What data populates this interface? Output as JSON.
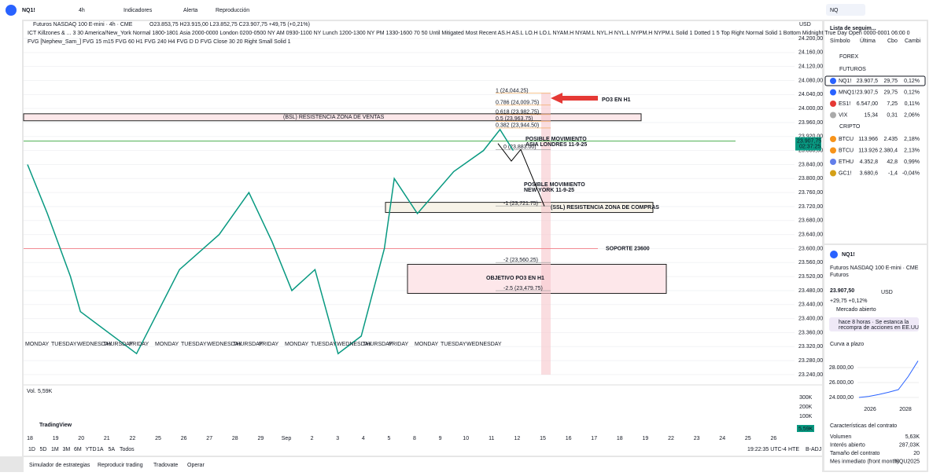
{
  "toolbar": {
    "symbol": "NQ1!",
    "interval": "4h",
    "indicators": "Indicadores",
    "alert": "Alerta",
    "replay": "Reproducción",
    "search": "NQ"
  },
  "chart": {
    "title": "Futuros NASDAQ 100 E-mini · 4h · CME",
    "ohlc": "O23.853,75 H23.915,00 L23.852,75 C23.907,75 +49,75 (+0,21%)",
    "indicator1": "ICT Killzones & ...  3 30 America/New_York Normal 1800-1801 Asia 2000-0000 London 0200-0500 NY AM 0930-1100 NY Lunch 1200-1300 NY PM 1330-1600 70 50 Until Mitigated Most Recent AS.H AS.L LO.H LO.L NYAM.H NYAM.L NYL.H NYL.L NYPM.H NYPM.L Solid 1 Dotted 1 5 Top Right Normal Solid 1 Bottom Midnight True Day Open 0000-0001 06:00 0",
    "indicator2": "FVG [Nephew_Sam_] FVG 15 m15 FVG 60 H1 FVG 240 H4 FVG D D FVG Close 30 20 Right Small Solid 1",
    "currency": "USD",
    "price_label": "23.907,75",
    "countdown": "02:37:25",
    "price_ticks": [
      {
        "value": 24200,
        "label": "24.200,00"
      },
      {
        "value": 24160,
        "label": "24.160,00"
      },
      {
        "value": 24120,
        "label": "24.120,00"
      },
      {
        "value": 24080,
        "label": "24.080,00"
      },
      {
        "value": 24040,
        "label": "24.040,00"
      },
      {
        "value": 24000,
        "label": "24.000,00"
      },
      {
        "value": 23960,
        "label": "23.960,00"
      },
      {
        "value": 23920,
        "label": "23.920,00"
      },
      {
        "value": 23880,
        "label": "23.880,00"
      },
      {
        "value": 23840,
        "label": "23.840,00"
      },
      {
        "value": 23800,
        "label": "23.800,00"
      },
      {
        "value": 23760,
        "label": "23.760,00"
      },
      {
        "value": 23720,
        "label": "23.720,00"
      },
      {
        "value": 23680,
        "label": "23.680,00"
      },
      {
        "value": 23640,
        "label": "23.640,00"
      },
      {
        "value": 23600,
        "label": "23.600,00"
      },
      {
        "value": 23560,
        "label": "23.560,00"
      },
      {
        "value": 23520,
        "label": "23.520,00"
      },
      {
        "value": 23480,
        "label": "23.480,00"
      },
      {
        "value": 23440,
        "label": "23.440,00"
      },
      {
        "value": 23400,
        "label": "23.400,00"
      },
      {
        "value": 23360,
        "label": "23.360,00"
      },
      {
        "value": 23320,
        "label": "23.320,00"
      },
      {
        "value": 23280,
        "label": "23.280,00"
      },
      {
        "value": 23240,
        "label": "23.240,00"
      }
    ],
    "price_path": {
      "x": [
        0,
        6,
        13,
        16,
        33,
        46,
        58,
        67,
        74,
        80,
        87,
        94,
        101,
        108,
        111,
        118,
        129,
        138,
        143,
        147
      ],
      "values": [
        23840,
        23700,
        23520,
        23420,
        23300,
        23540,
        23640,
        23760,
        23620,
        23480,
        23540,
        23300,
        23350,
        23600,
        23800,
        23700,
        23820,
        23880,
        23940,
        23880
      ]
    },
    "fib": [
      {
        "value": 24044.25,
        "label": "1 (24,044.25)"
      },
      {
        "value": 24009.75,
        "label": "0.786 (24,009.75)"
      },
      {
        "value": 23982.75,
        "label": "0.618 (23,982.75)"
      },
      {
        "value": 23963.75,
        "label": "0.5 (23,963.75)"
      },
      {
        "value": 23944.5,
        "label": "0.382 (23,944.50)"
      },
      {
        "value": 23883,
        "label": "0 (23,883.00)"
      },
      {
        "value": 23721.75,
        "label": "-1 (23,721.75)"
      },
      {
        "value": 23560.25,
        "label": "-2 (23,560.25)"
      },
      {
        "value": 23479.75,
        "label": "-2.5 (23,479.75)"
      }
    ],
    "annotations": {
      "bsl": "(BSL) RESISTENCIA ZONA DE VENTAS",
      "po3": "PO3 EN H1",
      "asia": [
        "POSIBLE MOVIMIENTO",
        "ASIA LONDRES 11-9-25"
      ],
      "ny": [
        "POSIBLE MOVIMIENTO",
        "NEW YORK 11-9-25"
      ],
      "ssl": "(SSL) RESISTENCIA ZONA DE COMPRAS",
      "soporte": "SOPORTE 23600",
      "objetivo": "OBJETIVO PO3 EN H1"
    },
    "weekdays": [
      "MONDAY",
      "TUESDAY",
      "WEDNESDAY",
      "THURSDAY",
      "FRIDAY",
      "MONDAY",
      "TUESDAY",
      "WEDNESDAY",
      "THURSDAY",
      "FRIDAY",
      "MONDAY",
      "TUESDAY",
      "WEDNESDAY",
      "THURSDAY",
      "FRIDAY",
      "MONDAY",
      "TUESDAY",
      "WEDNESDAY"
    ],
    "volume_label": "Vol.",
    "volume_value": "5,59K",
    "volume_ticks": [
      "300K",
      "200K",
      "100K"
    ],
    "dates": [
      "18",
      "19",
      "20",
      "21",
      "22",
      "25",
      "26",
      "27",
      "28",
      "29",
      "Sep",
      "2",
      "3",
      "4",
      "5",
      "8",
      "9",
      "10",
      "11",
      "12",
      "15",
      "16",
      "17",
      "18",
      "19",
      "22",
      "23",
      "24",
      "25",
      "26"
    ],
    "brand": "TradingView",
    "ranges": [
      "1D",
      "5D",
      "1M",
      "3M",
      "6M",
      "YTD",
      "1A",
      "5A",
      "Todos"
    ],
    "clock": "19:22:35 UTC-4",
    "session": "HTE",
    "adj": "B-ADJ"
  },
  "tabs": [
    "Simulador de estrategias",
    "Reproducir trading",
    "Tradovate",
    "Operar"
  ],
  "watchlist": {
    "title": "Lista de seguim...",
    "columns": [
      "Símbolo",
      "Última",
      "Cbo",
      "Cambi"
    ],
    "sections": [
      "FOREX",
      "FUTUROS",
      "CRIPTO"
    ],
    "rows": [
      [
        "NQ1!",
        "23.907,5",
        "29,75",
        "0,12%"
      ],
      [
        "MNQ1!",
        "23.907,5",
        "29,75",
        "0,12%"
      ],
      [
        "ES1!",
        "6.547,00",
        "7,25",
        "0,11%"
      ],
      [
        "VIX",
        "15,34",
        "0,31",
        "2,06%"
      ],
      [
        "BTCU",
        "113.966",
        "2.435",
        "2,18%"
      ],
      [
        "BTCU",
        "113.926",
        "2.380,4",
        "2,13%"
      ],
      [
        "ETHU",
        "4.352,8",
        "42,8",
        "0,99%"
      ],
      [
        "GC1!",
        "3.680,6",
        "-1,4",
        "-0,04%"
      ]
    ]
  },
  "details": {
    "symbol": "NQ1!",
    "name": "Futuros NASDAQ 100 E-mini · CME",
    "kind": "Futuros",
    "price": "23.907,50",
    "currency": "USD",
    "change": "+29,75 +0,12%",
    "status": "Mercado abierto",
    "news": [
      "hace 8 horas · Se estanca la",
      "recompra de acciones en EE.UU"
    ],
    "curve_title": "Curva a plazo",
    "curve": {
      "values": [
        24000,
        24150,
        24400,
        24700,
        25050,
        26800,
        28900
      ],
      "yticks": [
        {
          "value": 28000,
          "label": "28.000,00"
        },
        {
          "value": 26000,
          "label": "26.000,00"
        },
        {
          "value": 24000,
          "label": "24.000,00"
        }
      ],
      "years": [
        "2026",
        "2028"
      ]
    },
    "contract_title": "Características del contrato",
    "contract": [
      [
        "Volumen",
        "5,63K"
      ],
      [
        "Interés abierto",
        "287,03K"
      ],
      [
        "Tamaño del contrato",
        "20"
      ],
      [
        "Mes inmediato (front month)",
        "NQU2025"
      ]
    ]
  }
}
